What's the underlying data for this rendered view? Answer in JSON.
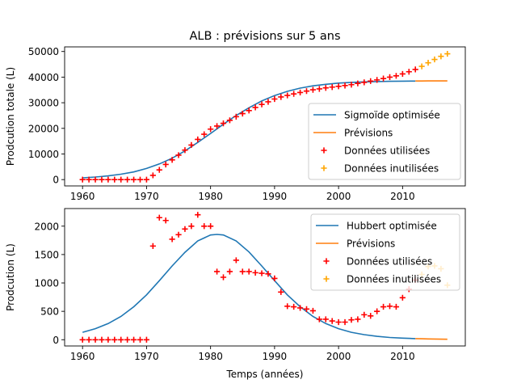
{
  "chart_data": [
    {
      "type": "line+scatter",
      "title": "ALB : prévisions sur 5 ans",
      "xlabel": "",
      "ylabel": "Prodcution totale (L)",
      "xlim": [
        1957.2,
        2019.8
      ],
      "ylim": [
        -2466,
        51800
      ],
      "xticks": [
        1960,
        1970,
        1980,
        1990,
        2000,
        2010
      ],
      "yticks": [
        0,
        10000,
        20000,
        30000,
        40000,
        50000
      ],
      "grid": false,
      "legend_position": "lower-right",
      "series": [
        {
          "name": "Sigmoïde optimisée",
          "kind": "line",
          "color": "#1f77b4",
          "x": [
            1960,
            1962,
            1964,
            1966,
            1968,
            1970,
            1972,
            1974,
            1976,
            1978,
            1980,
            1982,
            1984,
            1986,
            1988,
            1990,
            1992,
            1994,
            1996,
            1998,
            2000,
            2002,
            2004,
            2006,
            2008,
            2010,
            2012
          ],
          "y": [
            700,
            1000,
            1450,
            2100,
            3000,
            4350,
            6100,
            8350,
            11200,
            14500,
            18000,
            21600,
            25000,
            28050,
            30700,
            32800,
            34450,
            35700,
            36600,
            37200,
            37650,
            37950,
            38150,
            38280,
            38370,
            38430,
            38470
          ]
        },
        {
          "name": "Prévisions",
          "kind": "line",
          "color": "#ff7f0e",
          "x": [
            2012,
            2013,
            2014,
            2015,
            2016,
            2017
          ],
          "y": [
            38480,
            38500,
            38510,
            38520,
            38525,
            38530
          ]
        },
        {
          "name": "Données utilisées",
          "kind": "scatter",
          "marker": "+",
          "color": "#ff0000",
          "x": [
            1960,
            1961,
            1962,
            1963,
            1964,
            1965,
            1966,
            1967,
            1968,
            1969,
            1970,
            1971,
            1972,
            1973,
            1974,
            1975,
            1976,
            1977,
            1978,
            1979,
            1980,
            1981,
            1982,
            1983,
            1984,
            1985,
            1986,
            1987,
            1988,
            1989,
            1990,
            1991,
            1992,
            1993,
            1994,
            1995,
            1996,
            1997,
            1998,
            1999,
            2000,
            2001,
            2002,
            2003,
            2004,
            2005,
            2006,
            2007,
            2008,
            2009,
            2010,
            2011,
            2012
          ],
          "y": [
            0,
            0,
            0,
            0,
            0,
            0,
            0,
            0,
            0,
            0,
            0,
            1650,
            3800,
            5900,
            7700,
            9550,
            11500,
            13500,
            15700,
            17700,
            19700,
            20900,
            21950,
            23150,
            24550,
            25750,
            26950,
            28150,
            29350,
            30350,
            31450,
            32250,
            32850,
            33450,
            34000,
            34550,
            35050,
            35400,
            35800,
            36100,
            36400,
            36700,
            37050,
            37550,
            37950,
            38450,
            38900,
            39450,
            40000,
            40500,
            41250,
            42100,
            43000
          ]
        },
        {
          "name": "Données inutilisées",
          "kind": "scatter",
          "marker": "+",
          "color": "#ffa500",
          "x": [
            2013,
            2014,
            2015,
            2016,
            2017
          ],
          "y": [
            44200,
            45600,
            46900,
            48100,
            49100
          ]
        }
      ]
    },
    {
      "type": "line+scatter",
      "title": "",
      "xlabel": "Temps (années)",
      "ylabel": "Prodcution (L)",
      "xlim": [
        1957.2,
        2019.8
      ],
      "ylim": [
        -110,
        2310
      ],
      "xticks": [
        1960,
        1970,
        1980,
        1990,
        2000,
        2010
      ],
      "yticks": [
        0,
        500,
        1000,
        1500,
        2000
      ],
      "grid": false,
      "legend_position": "upper-right",
      "series": [
        {
          "name": "Hubbert optimisée",
          "kind": "line",
          "color": "#1f77b4",
          "x": [
            1960,
            1962,
            1964,
            1966,
            1968,
            1970,
            1972,
            1974,
            1976,
            1978,
            1980,
            1981,
            1982,
            1984,
            1986,
            1988,
            1990,
            1992,
            1994,
            1996,
            1998,
            2000,
            2002,
            2004,
            2006,
            2008,
            2010,
            2012
          ],
          "y": [
            130,
            195,
            285,
            410,
            580,
            790,
            1040,
            1300,
            1540,
            1740,
            1845,
            1855,
            1845,
            1740,
            1545,
            1300,
            1040,
            790,
            580,
            410,
            285,
            195,
            130,
            90,
            60,
            40,
            28,
            20
          ]
        },
        {
          "name": "Prévisions",
          "kind": "line",
          "color": "#ff7f0e",
          "x": [
            2012,
            2013,
            2014,
            2015,
            2016,
            2017
          ],
          "y": [
            20,
            17,
            14,
            12,
            10,
            8
          ]
        },
        {
          "name": "Données utilisées",
          "kind": "scatter",
          "marker": "+",
          "color": "#ff0000",
          "x": [
            1960,
            1961,
            1962,
            1963,
            1964,
            1965,
            1966,
            1967,
            1968,
            1969,
            1970,
            1971,
            1972,
            1973,
            1974,
            1975,
            1976,
            1977,
            1978,
            1979,
            1980,
            1981,
            1982,
            1983,
            1984,
            1985,
            1986,
            1987,
            1988,
            1989,
            1990,
            1991,
            1992,
            1993,
            1994,
            1995,
            1996,
            1997,
            1998,
            1999,
            2000,
            2001,
            2002,
            2003,
            2004,
            2005,
            2006,
            2007,
            2008,
            2009,
            2010,
            2011,
            2012
          ],
          "y": [
            0,
            0,
            0,
            0,
            0,
            0,
            0,
            0,
            0,
            0,
            0,
            1650,
            2150,
            2100,
            1770,
            1850,
            1950,
            2000,
            2200,
            2000,
            2000,
            1200,
            1100,
            1200,
            1400,
            1200,
            1200,
            1180,
            1170,
            1160,
            1080,
            840,
            590,
            580,
            560,
            540,
            510,
            360,
            360,
            330,
            310,
            310,
            350,
            360,
            440,
            420,
            500,
            580,
            590,
            580,
            740,
            890,
            1050
          ]
        },
        {
          "name": "Données inutilisées",
          "kind": "scatter",
          "marker": "+",
          "color": "#ffa500",
          "x": [
            2013,
            2014,
            2015,
            2016,
            2017
          ],
          "y": [
            1150,
            1290,
            1300,
            1250,
            960
          ]
        }
      ]
    }
  ]
}
